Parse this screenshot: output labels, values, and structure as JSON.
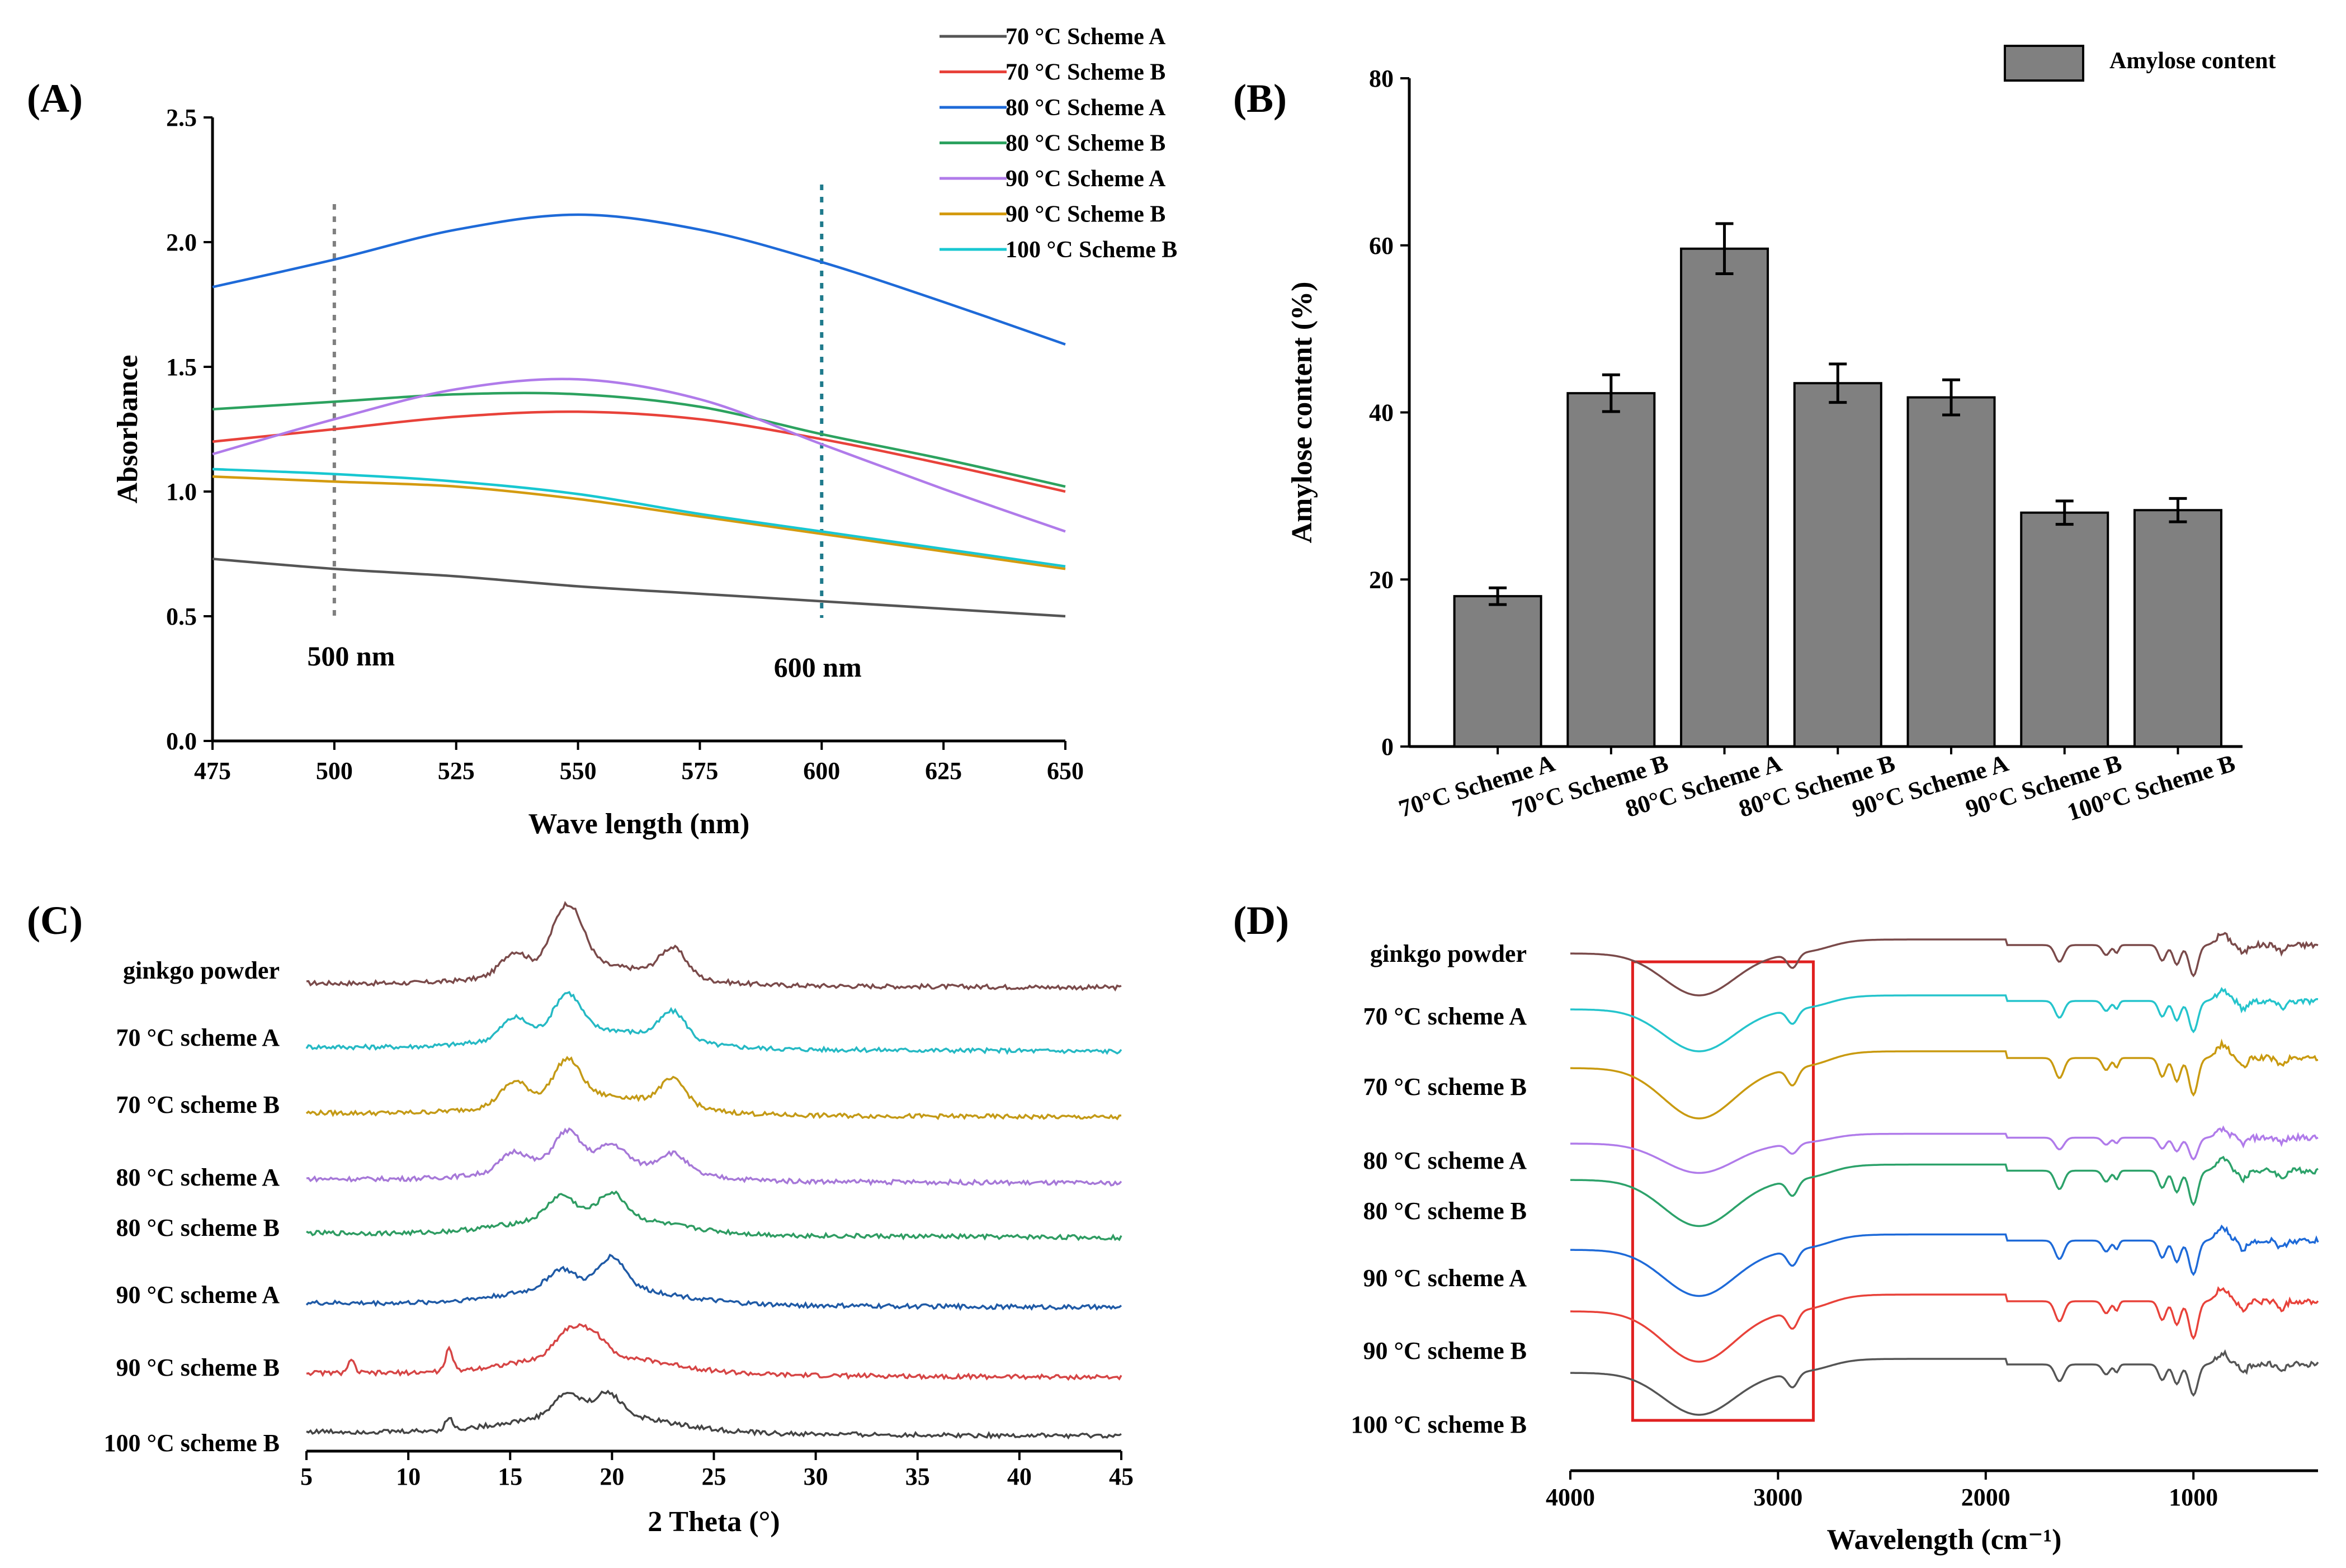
{
  "panel_labels": {
    "a": "(A)",
    "b": "(B)",
    "c": "(C)",
    "d": "(D)"
  },
  "chart_data": [
    {
      "id": "A",
      "type": "line",
      "title": "",
      "xlabel": "Wave length (nm)",
      "ylabel": "Absorbance",
      "xlim": [
        475,
        650
      ],
      "ylim": [
        0.0,
        2.5
      ],
      "xticks": [
        "475",
        "500",
        "525",
        "550",
        "575",
        "600",
        "625",
        "650"
      ],
      "yticks": [
        "0.0",
        "0.5",
        "1.0",
        "1.5",
        "2.0",
        "2.5"
      ],
      "annotations": [
        {
          "text": "500 nm",
          "x": 500,
          "color": "#7f7f7f"
        },
        {
          "text": "600 nm",
          "x": 600,
          "color": "#1f7a8c"
        }
      ],
      "x": [
        475,
        500,
        525,
        550,
        575,
        600,
        625,
        650
      ],
      "series": [
        {
          "name": "70 °C Scheme A",
          "color": "#555555",
          "values": [
            0.73,
            0.69,
            0.66,
            0.62,
            0.59,
            0.56,
            0.53,
            0.5
          ]
        },
        {
          "name": "70 °C Scheme B",
          "color": "#e8423a",
          "values": [
            1.2,
            1.25,
            1.3,
            1.32,
            1.29,
            1.21,
            1.11,
            1.0
          ]
        },
        {
          "name": "80 °C Scheme A",
          "color": "#1e6ad8",
          "values": [
            1.82,
            1.93,
            2.05,
            2.11,
            2.05,
            1.92,
            1.76,
            1.59
          ]
        },
        {
          "name": "80 °C Scheme B",
          "color": "#2ca25f",
          "values": [
            1.33,
            1.36,
            1.39,
            1.39,
            1.34,
            1.23,
            1.13,
            1.02
          ]
        },
        {
          "name": "90 °C Scheme A",
          "color": "#b07bea",
          "values": [
            1.15,
            1.29,
            1.41,
            1.45,
            1.37,
            1.19,
            1.01,
            0.84
          ]
        },
        {
          "name": "90 °C Scheme B",
          "color": "#d49b10",
          "values": [
            1.06,
            1.04,
            1.02,
            0.97,
            0.9,
            0.83,
            0.76,
            0.69
          ]
        },
        {
          "name": "100 °C Scheme B",
          "color": "#18c7d1",
          "values": [
            1.09,
            1.07,
            1.04,
            0.99,
            0.91,
            0.84,
            0.77,
            0.7
          ]
        }
      ]
    },
    {
      "id": "B",
      "type": "bar",
      "title": "",
      "xlabel": "",
      "ylabel": "Amylose content (%)",
      "ylim": [
        0,
        80
      ],
      "yticks": [
        "0",
        "20",
        "40",
        "60",
        "80"
      ],
      "legend": "Amylose content",
      "bar_color": "#808080",
      "categories": [
        "70°C Scheme A",
        "70°C Scheme B",
        "80°C Scheme A",
        "80°C Scheme B",
        "90°C Scheme A",
        "90°C Scheme B",
        "100°C Scheme B"
      ],
      "values": [
        18.0,
        42.3,
        59.6,
        43.5,
        41.8,
        28.0,
        28.3
      ],
      "errors": [
        1.0,
        2.2,
        3.0,
        2.3,
        2.1,
        1.4,
        1.4
      ]
    },
    {
      "id": "C",
      "type": "line",
      "title": "",
      "xlabel": "2 Theta (°)",
      "ylabel": "",
      "xlim": [
        5,
        45
      ],
      "xticks": [
        "5",
        "10",
        "15",
        "20",
        "25",
        "30",
        "35",
        "40",
        "45"
      ],
      "series": [
        {
          "name": "ginkgo powder",
          "color": "#7a4a4a",
          "peaks": [
            [
              15.2,
              0.55
            ],
            [
              17.5,
              1.0
            ],
            [
              18.2,
              0.85
            ],
            [
              23.0,
              0.7
            ]
          ]
        },
        {
          "name": "70 °C scheme A",
          "color": "#25b9c4",
          "peaks": [
            [
              15.2,
              0.5
            ],
            [
              17.8,
              0.95
            ],
            [
              23.0,
              0.7
            ]
          ]
        },
        {
          "name": "70 °C scheme B",
          "color": "#c49a16",
          "peaks": [
            [
              15.2,
              0.55
            ],
            [
              17.8,
              0.95
            ],
            [
              23.0,
              0.65
            ]
          ]
        },
        {
          "name": "80 °C scheme A",
          "color": "#a678d8",
          "peaks": [
            [
              15.2,
              0.45
            ],
            [
              17.8,
              0.8
            ],
            [
              20.0,
              0.45
            ],
            [
              23.0,
              0.45
            ]
          ]
        },
        {
          "name": "80 °C scheme B",
          "color": "#2e9c62",
          "peaks": [
            [
              17.5,
              0.55
            ],
            [
              20.0,
              0.6
            ]
          ]
        },
        {
          "name": "90 °C scheme A",
          "color": "#1f5aa6",
          "peaks": [
            [
              17.5,
              0.45
            ],
            [
              20.0,
              0.75
            ]
          ]
        },
        {
          "name": "90 °C scheme B",
          "color": "#d64545",
          "peaks": [
            [
              7.2,
              0.3
            ],
            [
              12.0,
              0.55
            ],
            [
              17.8,
              0.6
            ],
            [
              19.0,
              0.55
            ]
          ]
        },
        {
          "name": "100 °C scheme B",
          "color": "#444444",
          "peaks": [
            [
              12.0,
              0.3
            ],
            [
              17.8,
              0.55
            ],
            [
              19.8,
              0.55
            ]
          ]
        }
      ]
    },
    {
      "id": "D",
      "type": "line",
      "title": "",
      "xlabel": "Wavelength (cm⁻¹)",
      "ylabel": "",
      "xlim": [
        4000,
        400
      ],
      "xticks": [
        "4000",
        "3000",
        "2000",
        "1000"
      ],
      "highlight_range": [
        3700,
        2830
      ],
      "series": [
        {
          "name": "ginkgo powder",
          "color": "#7a4a4a"
        },
        {
          "name": "70 °C scheme A",
          "color": "#25c4cc"
        },
        {
          "name": "70 °C scheme B",
          "color": "#c99a10"
        },
        {
          "name": "80 °C scheme A",
          "color": "#b07bea"
        },
        {
          "name": "80 °C scheme B",
          "color": "#2ca26a"
        },
        {
          "name": "90 °C scheme A",
          "color": "#1e6ad8"
        },
        {
          "name": "90 °C scheme B",
          "color": "#e8423a"
        },
        {
          "name": "100 °C scheme B",
          "color": "#555555"
        }
      ]
    }
  ]
}
